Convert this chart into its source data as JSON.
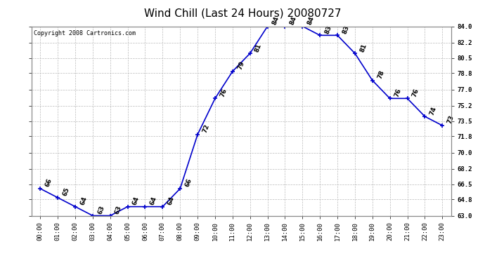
{
  "title": "Wind Chill (Last 24 Hours) 20080727",
  "copyright": "Copyright 2008 Cartronics.com",
  "hours": [
    "00:00",
    "01:00",
    "02:00",
    "03:00",
    "04:00",
    "05:00",
    "06:00",
    "07:00",
    "08:00",
    "09:00",
    "10:00",
    "11:00",
    "12:00",
    "13:00",
    "14:00",
    "15:00",
    "16:00",
    "17:00",
    "18:00",
    "19:00",
    "20:00",
    "21:00",
    "22:00",
    "23:00"
  ],
  "values": [
    66,
    65,
    64,
    63,
    63,
    64,
    64,
    64,
    66,
    72,
    76,
    79,
    81,
    84,
    84,
    84,
    83,
    83,
    81,
    78,
    76,
    76,
    74,
    73
  ],
  "line_color": "#0000cc",
  "marker_color": "#0000cc",
  "background_color": "#ffffff",
  "plot_bg_color": "#ffffff",
  "grid_color": "#bbbbbb",
  "ylim": [
    63.0,
    84.0
  ],
  "yticks_right": [
    84.0,
    82.2,
    80.5,
    78.8,
    77.0,
    75.2,
    73.5,
    71.8,
    70.0,
    68.2,
    66.5,
    64.8,
    63.0
  ],
  "title_fontsize": 11,
  "label_fontsize": 6.5,
  "annotation_fontsize": 6.5,
  "copyright_fontsize": 6
}
